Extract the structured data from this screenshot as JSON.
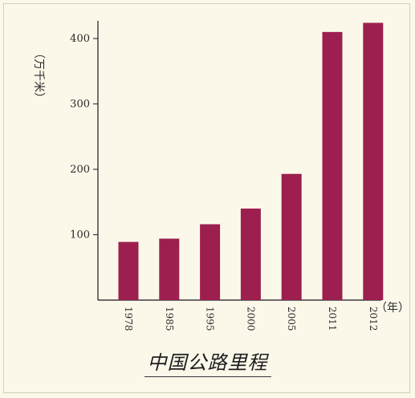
{
  "chart_data": {
    "type": "bar",
    "categories": [
      "1978",
      "1985",
      "1995",
      "2000",
      "2005",
      "2011",
      "2012"
    ],
    "values": [
      89,
      94,
      116,
      140,
      193,
      410,
      424
    ],
    "title": "中国公路里程",
    "ylabel": "（万千米）",
    "xlabel": "（年）",
    "ylim": [
      0,
      400
    ],
    "yticks": [
      100,
      200,
      300,
      400
    ],
    "colors": {
      "bar": "#9c1f4f",
      "axis": "#3a3a3a",
      "background": "#fbf8ea"
    },
    "grid": false,
    "legend": "none"
  }
}
